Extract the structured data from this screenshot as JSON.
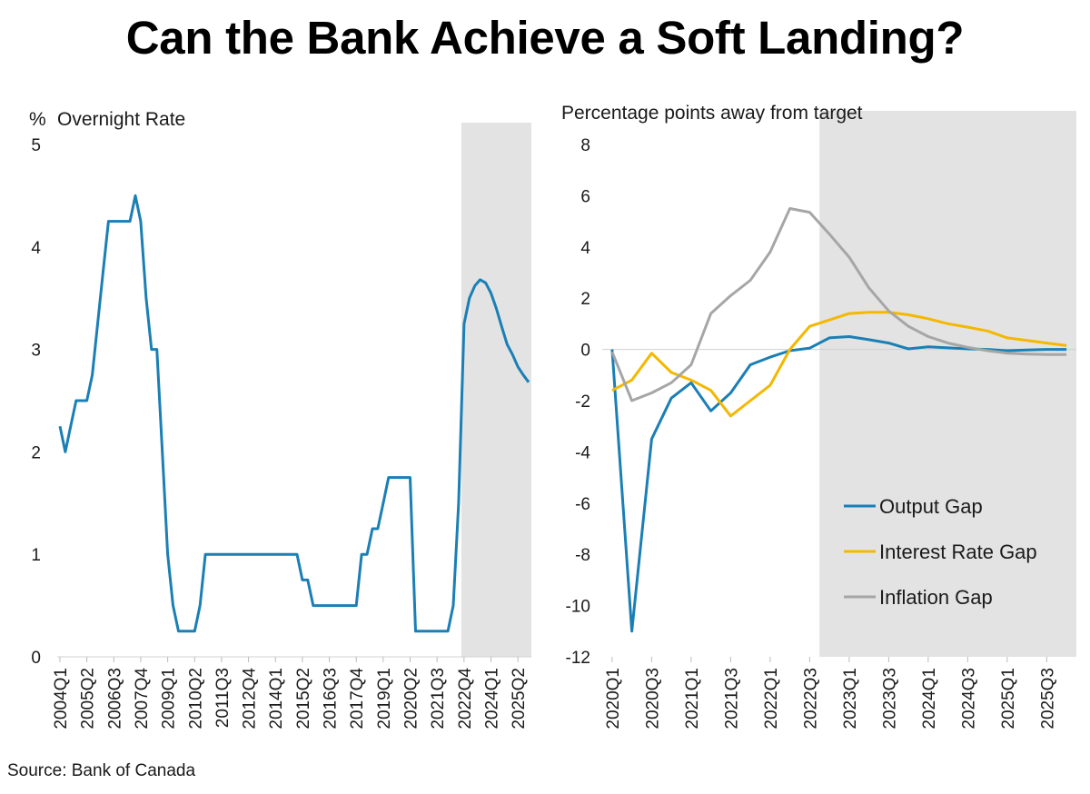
{
  "title": "Can the Bank Achieve a Soft Landing?",
  "source": "Source: Bank of Canada",
  "colors": {
    "blue": "#1a7fb5",
    "yellow": "#f4b800",
    "gray": "#a6a6a6",
    "shade": "#e3e3e3"
  },
  "chart_data": [
    {
      "type": "line",
      "ylabel": "%",
      "ylabel2": "Overnight Rate",
      "ylim": [
        0,
        5
      ],
      "yticks": [
        0,
        1,
        2,
        3,
        4,
        5
      ],
      "x_tick_labels": [
        "2004Q1",
        "2005Q2",
        "2006Q3",
        "2007Q4",
        "2009Q1",
        "2010Q2",
        "2011Q3",
        "2012Q4",
        "2014Q1",
        "2015Q2",
        "2016Q3",
        "2017Q4",
        "2019Q1",
        "2020Q2",
        "2021Q3",
        "2022Q4",
        "2024Q1",
        "2025Q2"
      ],
      "quarter_count": 88,
      "shaded_from_quarter": 75,
      "grid": false,
      "series": [
        {
          "color": "blue",
          "points": [
            [
              0,
              2.25
            ],
            [
              1,
              2.0
            ],
            [
              2,
              2.25
            ],
            [
              3,
              2.5
            ],
            [
              4,
              2.5
            ],
            [
              5,
              2.5
            ],
            [
              6,
              2.75
            ],
            [
              7,
              3.25
            ],
            [
              8,
              3.75
            ],
            [
              9,
              4.25
            ],
            [
              10,
              4.25
            ],
            [
              11,
              4.25
            ],
            [
              12,
              4.25
            ],
            [
              13,
              4.25
            ],
            [
              14,
              4.5
            ],
            [
              15,
              4.25
            ],
            [
              16,
              3.5
            ],
            [
              17,
              3.0
            ],
            [
              18,
              3.0
            ],
            [
              19,
              2.0
            ],
            [
              20,
              1.0
            ],
            [
              21,
              0.5
            ],
            [
              22,
              0.25
            ],
            [
              23,
              0.25
            ],
            [
              24,
              0.25
            ],
            [
              25,
              0.25
            ],
            [
              26,
              0.5
            ],
            [
              27,
              1.0
            ],
            [
              28,
              1.0
            ],
            [
              29,
              1.0
            ],
            [
              30,
              1.0
            ],
            [
              31,
              1.0
            ],
            [
              32,
              1.0
            ],
            [
              33,
              1.0
            ],
            [
              34,
              1.0
            ],
            [
              35,
              1.0
            ],
            [
              36,
              1.0
            ],
            [
              37,
              1.0
            ],
            [
              38,
              1.0
            ],
            [
              39,
              1.0
            ],
            [
              40,
              1.0
            ],
            [
              41,
              1.0
            ],
            [
              42,
              1.0
            ],
            [
              43,
              1.0
            ],
            [
              44,
              1.0
            ],
            [
              45,
              0.75
            ],
            [
              46,
              0.75
            ],
            [
              47,
              0.5
            ],
            [
              48,
              0.5
            ],
            [
              49,
              0.5
            ],
            [
              50,
              0.5
            ],
            [
              51,
              0.5
            ],
            [
              52,
              0.5
            ],
            [
              53,
              0.5
            ],
            [
              54,
              0.5
            ],
            [
              55,
              0.5
            ],
            [
              56,
              1.0
            ],
            [
              57,
              1.0
            ],
            [
              58,
              1.25
            ],
            [
              59,
              1.25
            ],
            [
              60,
              1.5
            ],
            [
              61,
              1.75
            ],
            [
              62,
              1.75
            ],
            [
              63,
              1.75
            ],
            [
              64,
              1.75
            ],
            [
              65,
              1.75
            ],
            [
              66,
              0.25
            ],
            [
              67,
              0.25
            ],
            [
              68,
              0.25
            ],
            [
              69,
              0.25
            ],
            [
              70,
              0.25
            ],
            [
              71,
              0.25
            ],
            [
              72,
              0.25
            ],
            [
              73,
              0.5
            ],
            [
              74,
              1.5
            ],
            [
              75,
              3.25
            ],
            [
              76,
              3.5
            ],
            [
              77,
              3.62
            ],
            [
              78,
              3.68
            ],
            [
              79,
              3.65
            ],
            [
              80,
              3.55
            ],
            [
              81,
              3.4
            ],
            [
              82,
              3.22
            ],
            [
              83,
              3.05
            ],
            [
              84,
              2.95
            ],
            [
              85,
              2.83
            ],
            [
              86,
              2.75
            ],
            [
              87,
              2.68
            ]
          ]
        }
      ]
    },
    {
      "type": "line",
      "ylabel": "Percentage points away from target",
      "ylim": [
        -12,
        8
      ],
      "yticks": [
        8,
        6,
        4,
        2,
        0,
        -2,
        -4,
        -6,
        -8,
        -10,
        -12
      ],
      "x_tick_labels": [
        "2020Q1",
        "2020Q3",
        "2021Q1",
        "2021Q3",
        "2022Q1",
        "2022Q3",
        "2023Q1",
        "2023Q3",
        "2024Q1",
        "2024Q3",
        "2025Q1",
        "2025Q3"
      ],
      "quarter_count": 24,
      "shaded_from_quarter": 11,
      "grid": false,
      "legend": "bottom-right",
      "series": [
        {
          "name": "Output Gap",
          "color": "blue",
          "points": [
            [
              0,
              0
            ],
            [
              1,
              -11.0
            ],
            [
              2,
              -3.5
            ],
            [
              3,
              -1.9
            ],
            [
              4,
              -1.3
            ],
            [
              5,
              -2.4
            ],
            [
              6,
              -1.7
            ],
            [
              7,
              -0.6
            ],
            [
              8,
              -0.3
            ],
            [
              9,
              -0.05
            ],
            [
              10,
              0.05
            ],
            [
              11,
              0.45
            ],
            [
              12,
              0.5
            ],
            [
              13,
              0.38
            ],
            [
              14,
              0.25
            ],
            [
              15,
              0.02
            ],
            [
              16,
              0.1
            ],
            [
              17,
              0.06
            ],
            [
              18,
              0.02
            ],
            [
              19,
              0.0
            ],
            [
              20,
              -0.05
            ],
            [
              21,
              -0.02
            ],
            [
              22,
              0.0
            ],
            [
              23,
              0.0
            ]
          ]
        },
        {
          "name": "Interest Rate Gap",
          "color": "yellow",
          "points": [
            [
              0,
              -1.6
            ],
            [
              1,
              -1.2
            ],
            [
              2,
              -0.15
            ],
            [
              3,
              -0.9
            ],
            [
              4,
              -1.2
            ],
            [
              5,
              -1.6
            ],
            [
              6,
              -2.6
            ],
            [
              7,
              -2.0
            ],
            [
              8,
              -1.4
            ],
            [
              9,
              0.0
            ],
            [
              10,
              0.9
            ],
            [
              11,
              1.15
            ],
            [
              12,
              1.4
            ],
            [
              13,
              1.45
            ],
            [
              14,
              1.45
            ],
            [
              15,
              1.35
            ],
            [
              16,
              1.2
            ],
            [
              17,
              1.0
            ],
            [
              18,
              0.87
            ],
            [
              19,
              0.72
            ],
            [
              20,
              0.45
            ],
            [
              21,
              0.35
            ],
            [
              22,
              0.25
            ],
            [
              23,
              0.15
            ]
          ]
        },
        {
          "name": "Inflation Gap",
          "color": "gray",
          "points": [
            [
              0,
              -0.1
            ],
            [
              1,
              -2.0
            ],
            [
              2,
              -1.7
            ],
            [
              3,
              -1.3
            ],
            [
              4,
              -0.6
            ],
            [
              5,
              1.4
            ],
            [
              6,
              2.1
            ],
            [
              7,
              2.7
            ],
            [
              8,
              3.8
            ],
            [
              9,
              5.5
            ],
            [
              10,
              5.35
            ],
            [
              11,
              4.5
            ],
            [
              12,
              3.6
            ],
            [
              13,
              2.4
            ],
            [
              14,
              1.5
            ],
            [
              15,
              0.9
            ],
            [
              16,
              0.5
            ],
            [
              17,
              0.25
            ],
            [
              18,
              0.08
            ],
            [
              19,
              -0.05
            ],
            [
              20,
              -0.15
            ],
            [
              21,
              -0.18
            ],
            [
              22,
              -0.2
            ],
            [
              23,
              -0.2
            ]
          ]
        }
      ]
    }
  ]
}
